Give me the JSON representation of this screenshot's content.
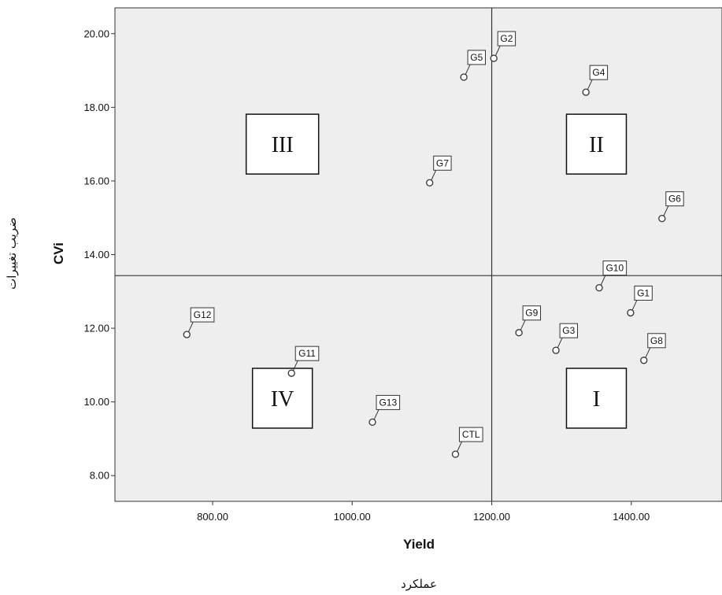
{
  "chart_data": {
    "type": "scatter",
    "xlabel": "Yield",
    "ylabel": "CVi",
    "xlabel_fa": "عملکرد",
    "ylabel_fa": "ضریب تغییرات",
    "xlim": [
      660,
      1530
    ],
    "ylim": [
      7.3,
      20.7
    ],
    "xticks": [
      800,
      1000,
      1200,
      1400
    ],
    "xtick_labels": [
      "800.00",
      "1000.00",
      "1200.00",
      "1400.00"
    ],
    "yticks": [
      8,
      10,
      12,
      14,
      16,
      18,
      20
    ],
    "ytick_labels": [
      "8.00",
      "10.00",
      "12.00",
      "14.00",
      "16.00",
      "18.00",
      "20.00"
    ],
    "ref_lines": {
      "x": 1200,
      "y": 13.43
    },
    "grid": false,
    "points": [
      {
        "label": "G1",
        "x": 1399,
        "y": 12.42
      },
      {
        "label": "G2",
        "x": 1203,
        "y": 19.33
      },
      {
        "label": "G3",
        "x": 1292,
        "y": 11.4
      },
      {
        "label": "G4",
        "x": 1335,
        "y": 18.41
      },
      {
        "label": "G5",
        "x": 1160,
        "y": 18.82
      },
      {
        "label": "G6",
        "x": 1444,
        "y": 14.98
      },
      {
        "label": "G7",
        "x": 1111,
        "y": 15.95
      },
      {
        "label": "G8",
        "x": 1418,
        "y": 11.13
      },
      {
        "label": "G9",
        "x": 1239,
        "y": 11.88
      },
      {
        "label": "G10",
        "x": 1354,
        "y": 13.1
      },
      {
        "label": "G11",
        "x": 913,
        "y": 10.78
      },
      {
        "label": "G12",
        "x": 763,
        "y": 11.83
      },
      {
        "label": "G13",
        "x": 1029,
        "y": 9.45
      },
      {
        "label": "CTL",
        "x": 1148,
        "y": 8.58
      }
    ],
    "quadrants": [
      {
        "label": "III",
        "x": 900,
        "y": 17.0
      },
      {
        "label": "II",
        "x": 1350,
        "y": 17.0
      },
      {
        "label": "IV",
        "x": 900,
        "y": 10.1
      },
      {
        "label": "I",
        "x": 1350,
        "y": 10.1
      }
    ]
  }
}
